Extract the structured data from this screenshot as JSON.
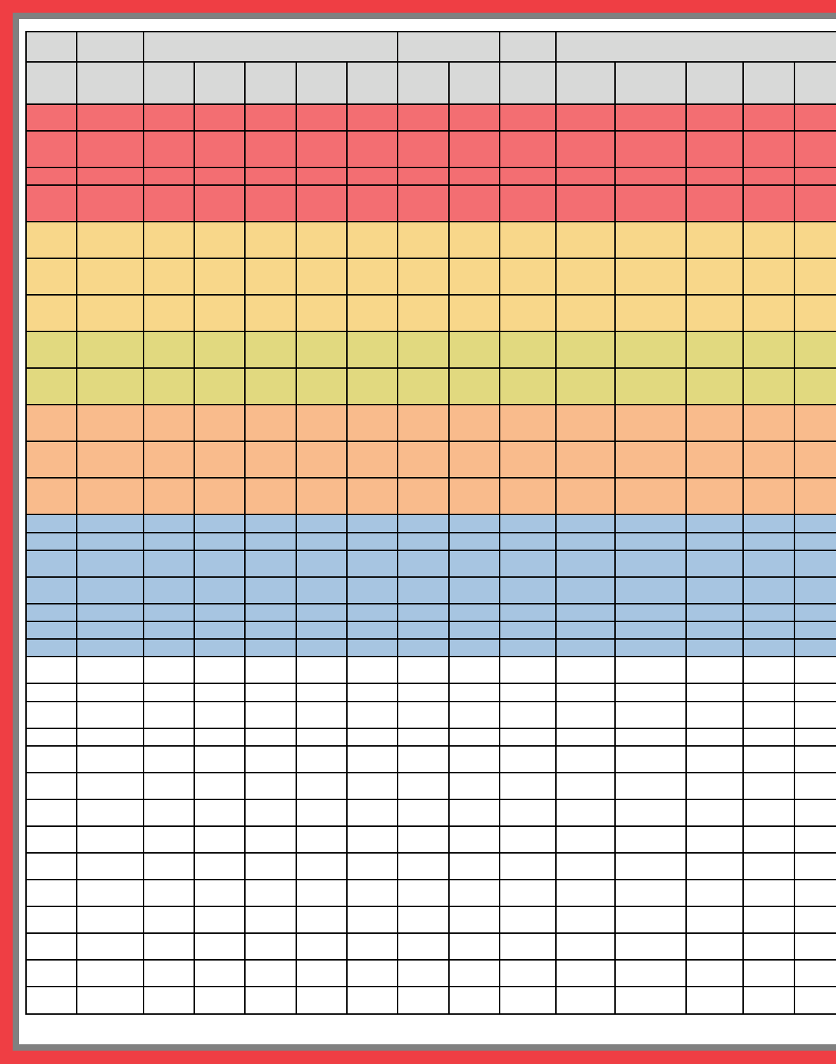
{
  "colors": {
    "outer_border": "#ef3e44",
    "inner_border": "#808080",
    "header": "#d8d9d8",
    "red": "#f36e72",
    "yellow": "#f8d78a",
    "olive": "#e1d97f",
    "orange": "#f9bb8c",
    "blue": "#a7c5e1",
    "white": "#ffffff"
  },
  "table": {
    "header_groups": [
      1,
      1,
      5,
      2,
      1,
      5
    ],
    "body_bands": [
      "red",
      "red",
      "red",
      "red",
      "yellow",
      "yellow",
      "yellow",
      "olive",
      "olive",
      "orange",
      "orange",
      "orange",
      "blue",
      "blue",
      "blue",
      "blue",
      "blue",
      "blue",
      "blue",
      "white",
      "white",
      "white",
      "white",
      "white",
      "white",
      "white",
      "white",
      "white",
      "white",
      "white",
      "white",
      "white",
      "white"
    ]
  }
}
